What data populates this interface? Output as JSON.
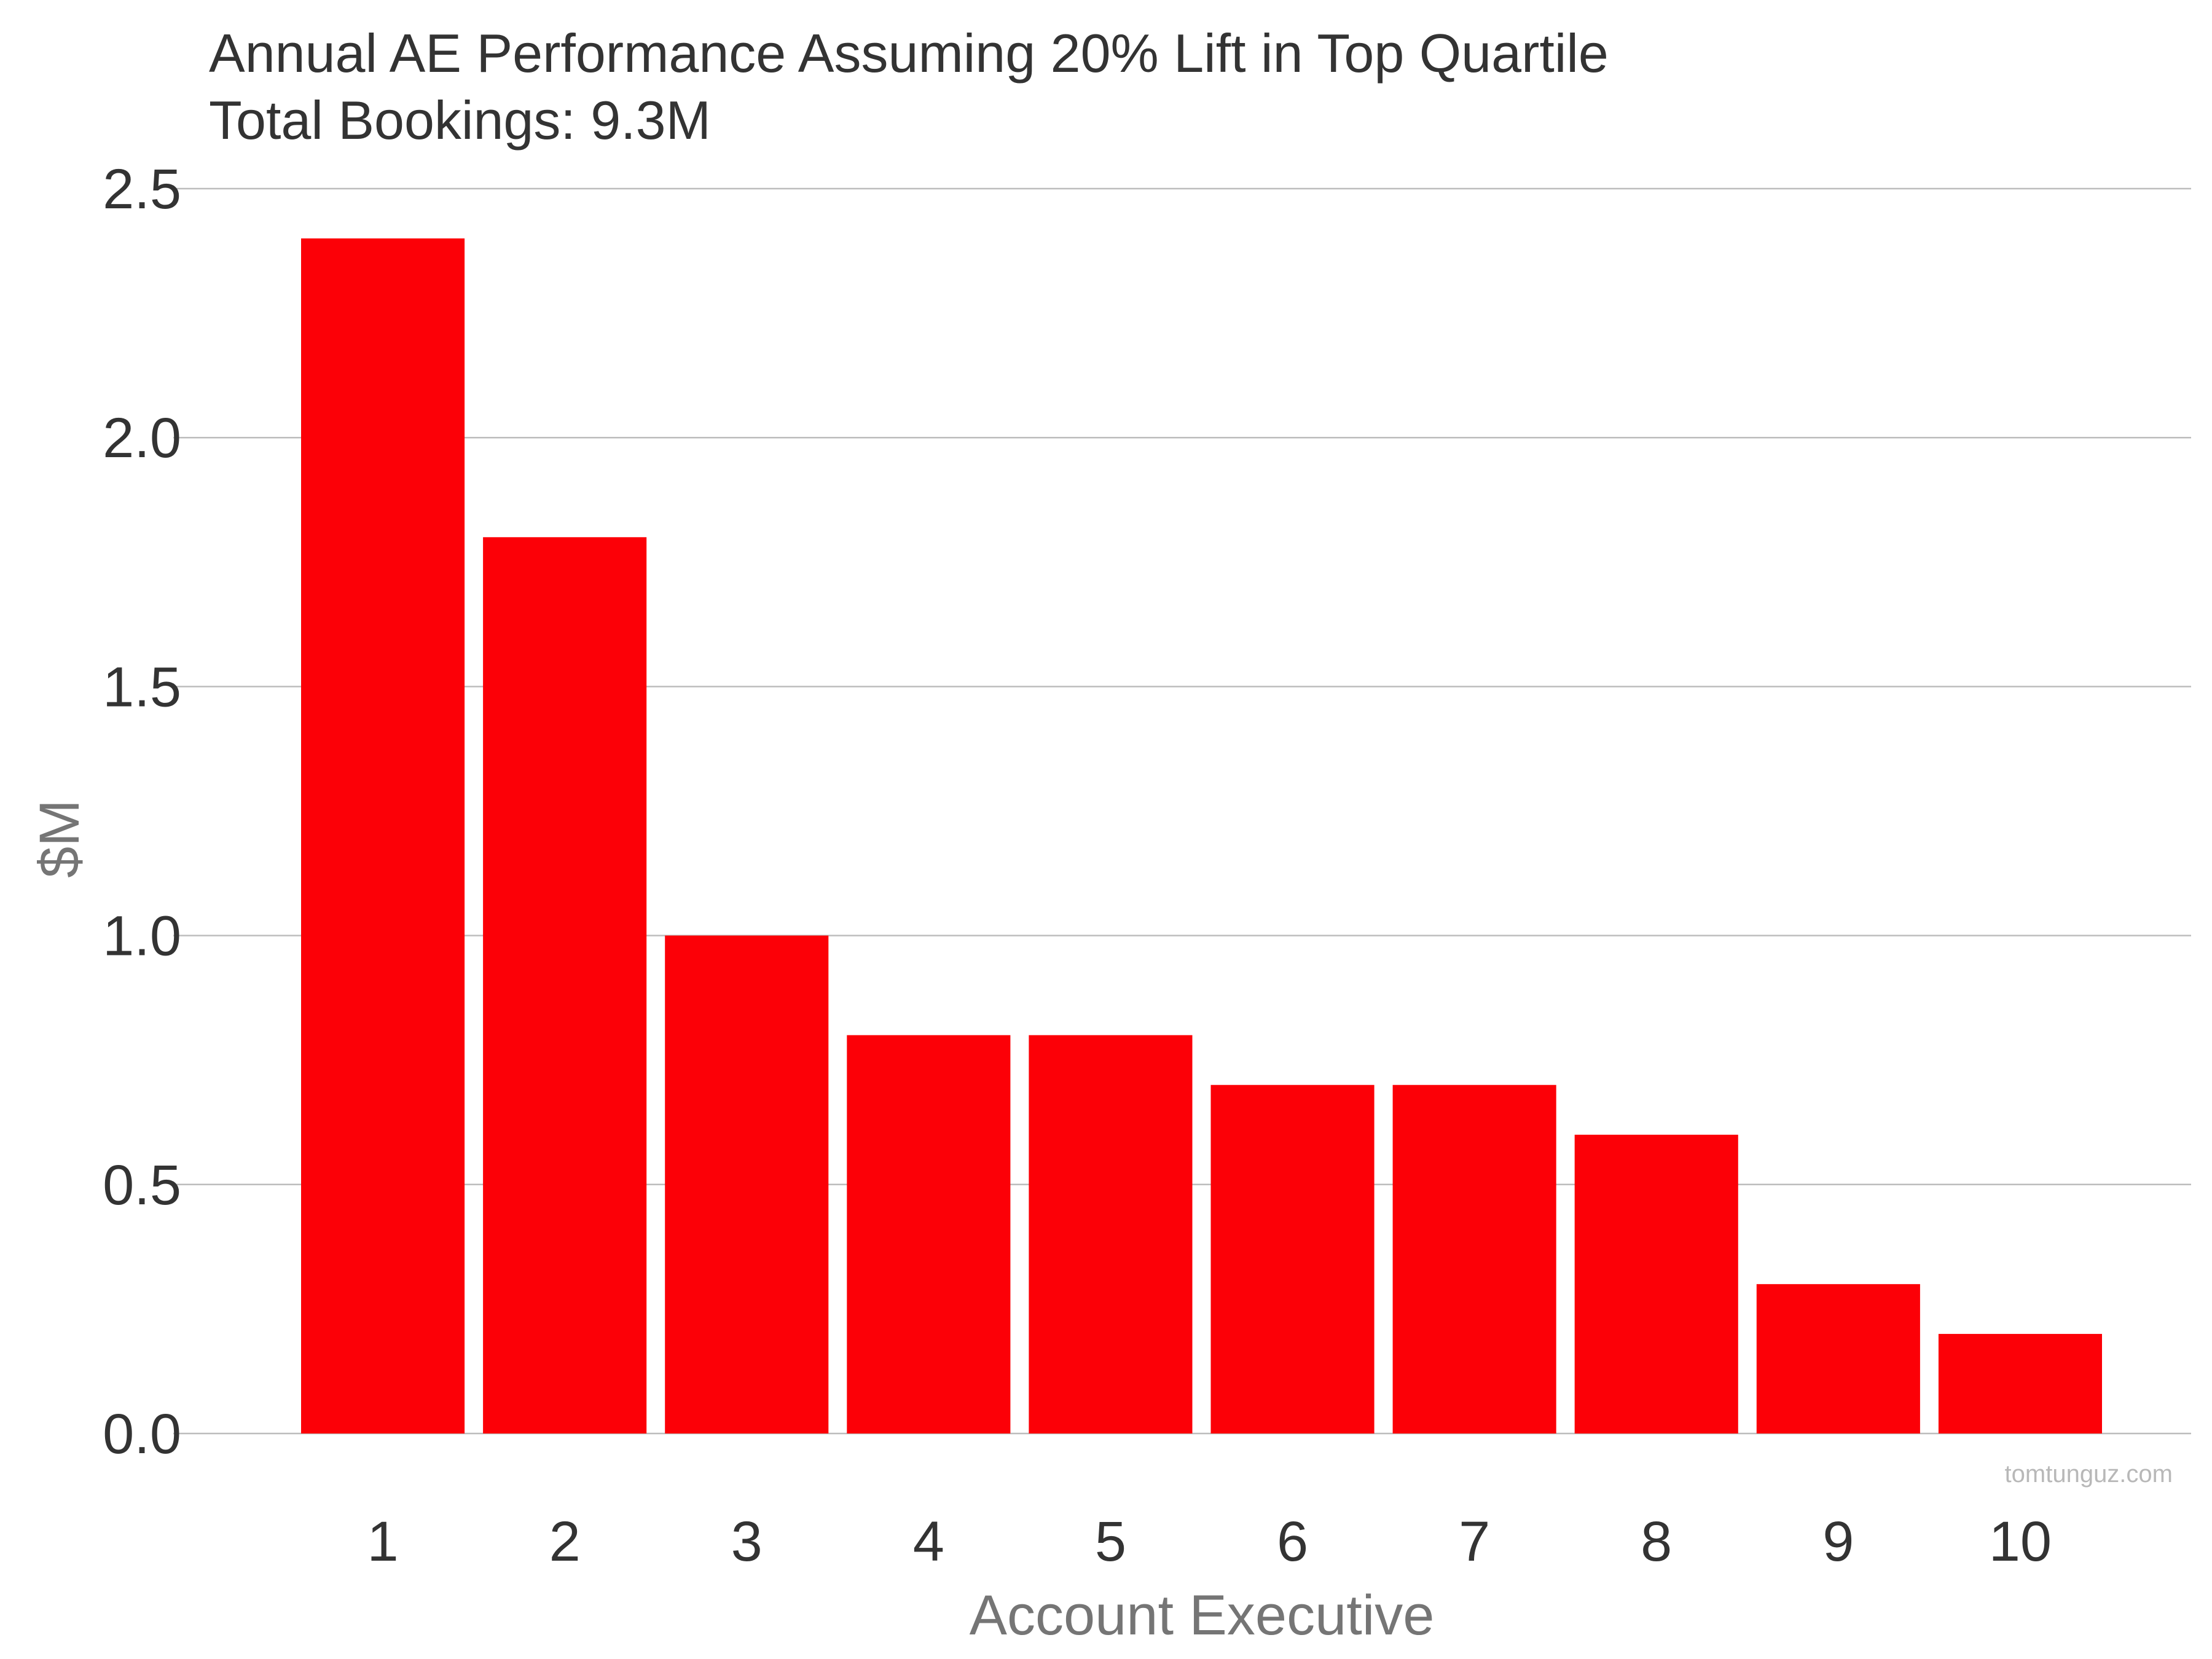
{
  "chart_data": {
    "type": "bar",
    "title": "Annual AE Performance Assuming 20% Lift in Top Quartile",
    "subtitle": "Total Bookings: 9.3M",
    "xlabel": "Account Executive",
    "ylabel": "$M",
    "categories": [
      "1",
      "2",
      "3",
      "4",
      "5",
      "6",
      "7",
      "8",
      "9",
      "10"
    ],
    "values": [
      2.4,
      1.8,
      1.0,
      0.8,
      0.8,
      0.7,
      0.7,
      0.6,
      0.3,
      0.2
    ],
    "ylim": [
      0,
      2.5
    ],
    "yticks": [
      "0.0",
      "0.5",
      "1.0",
      "1.5",
      "2.0",
      "2.5"
    ],
    "grid": true,
    "bar_color": "#fc0007",
    "watermark": "tomtunguz.com"
  }
}
